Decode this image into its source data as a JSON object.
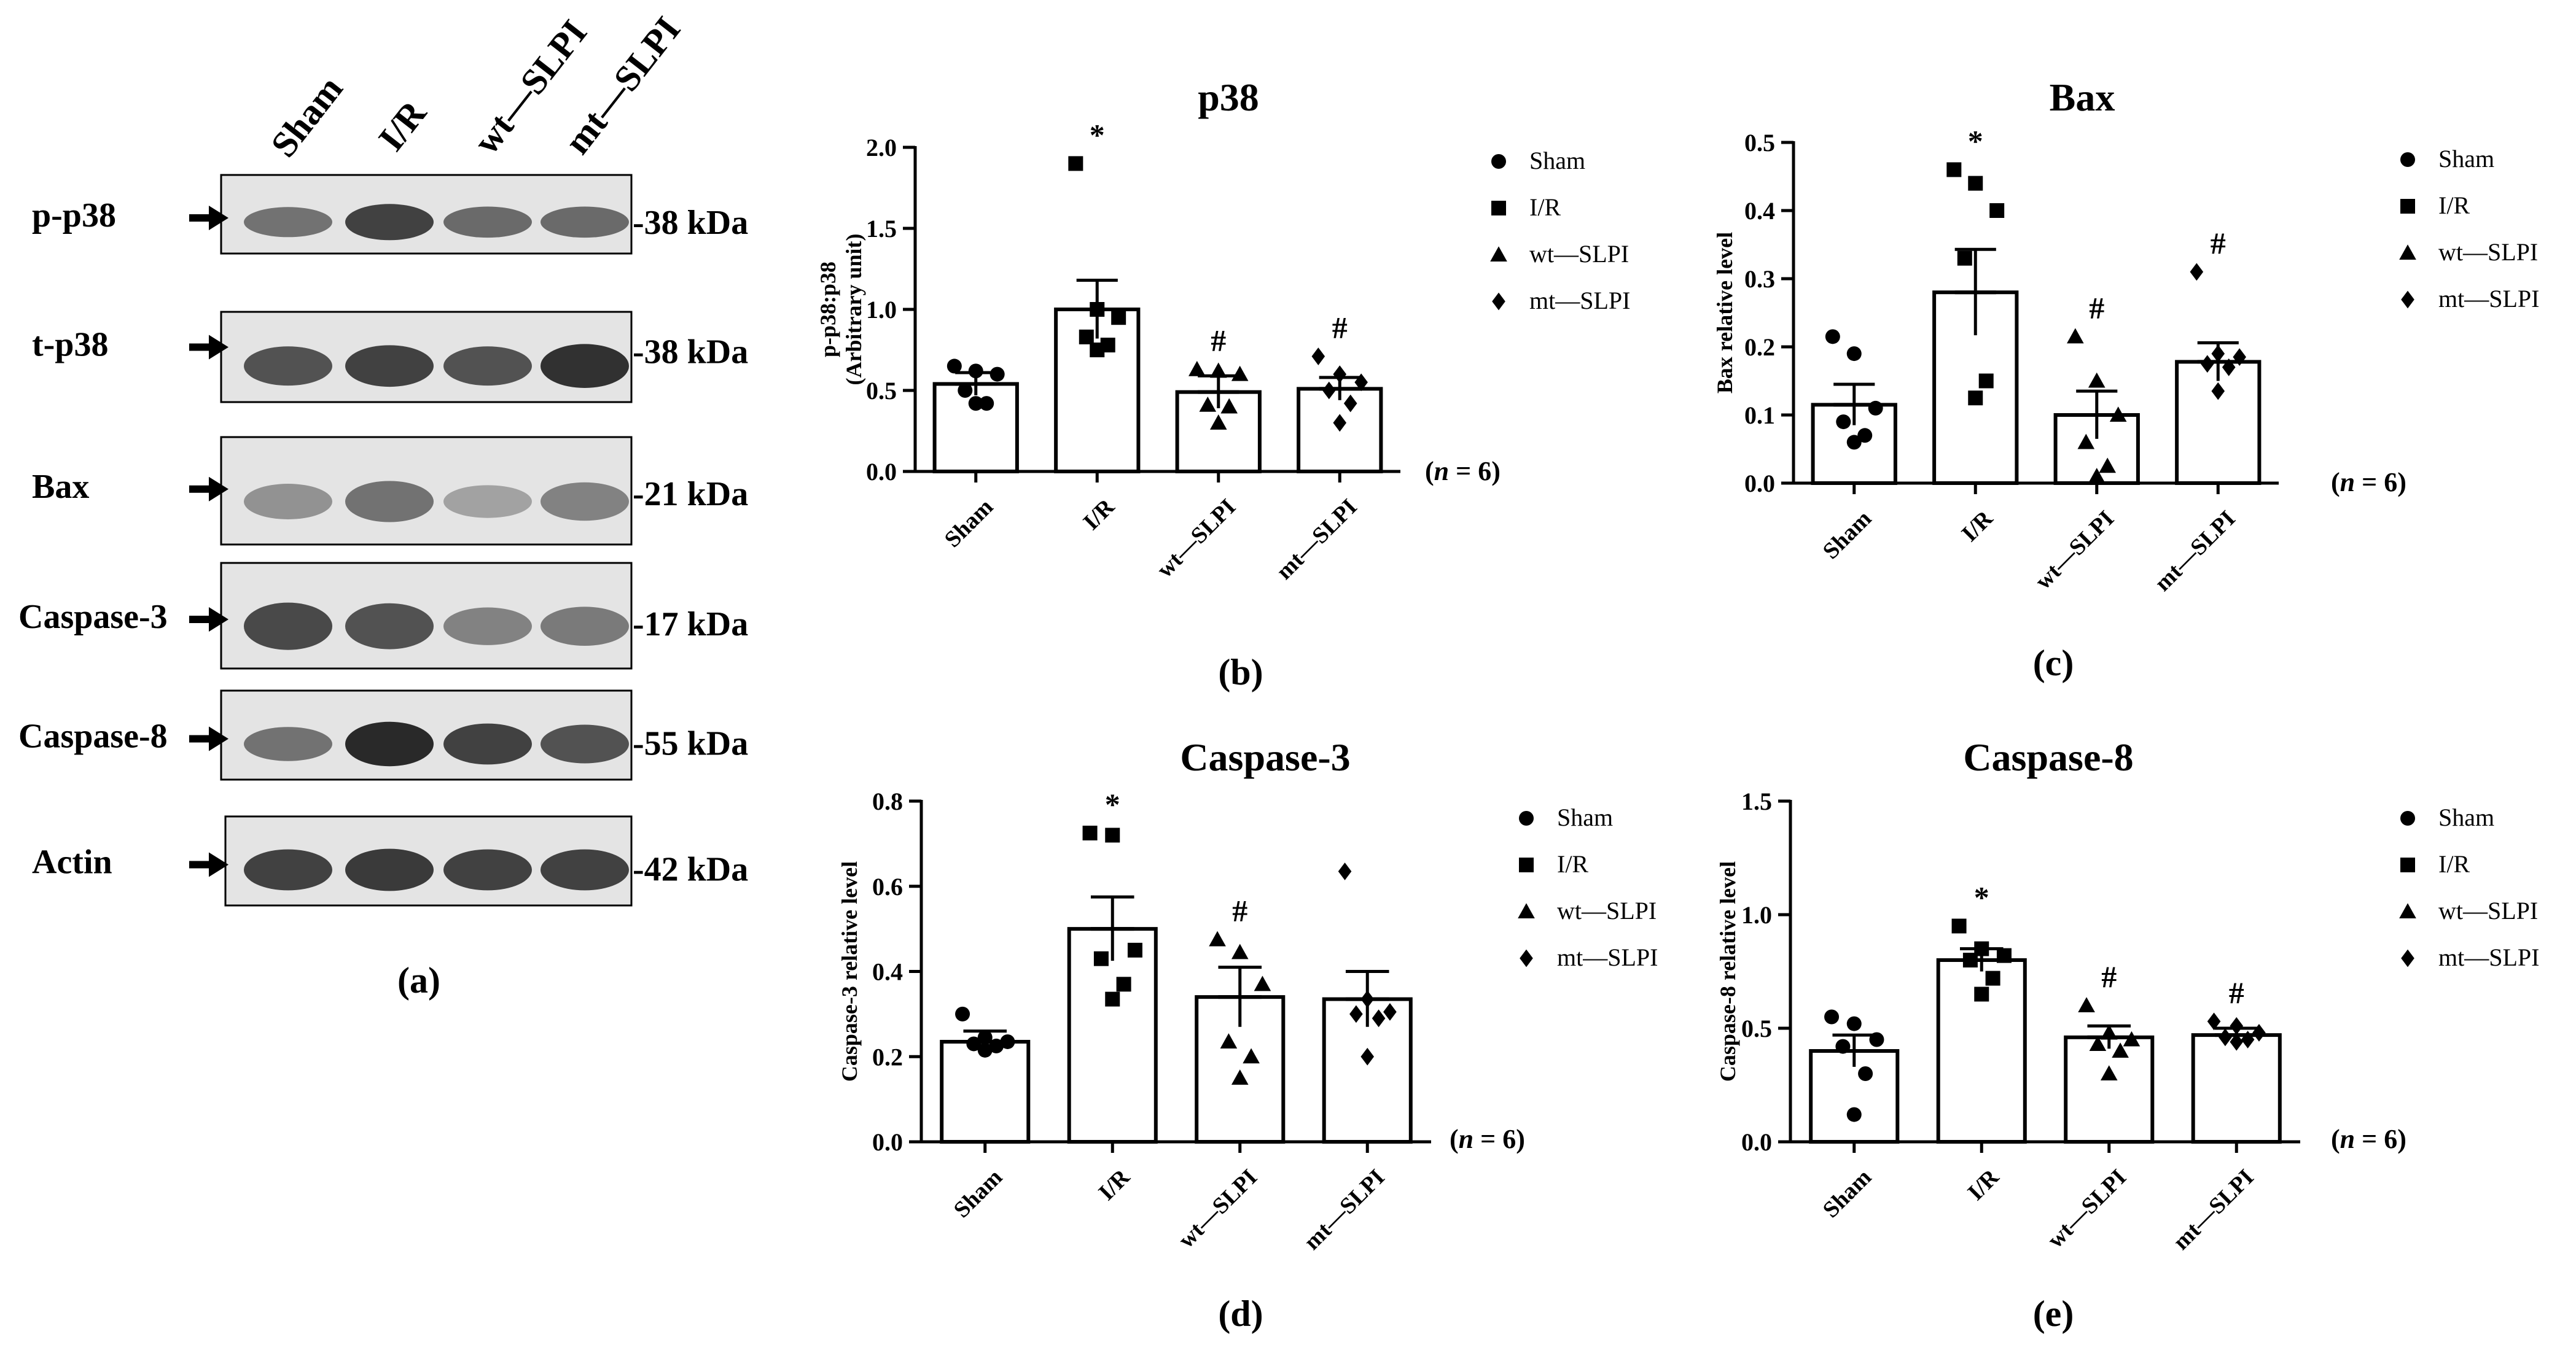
{
  "figure": {
    "panel_labels": [
      "(a)",
      "(b)",
      "(c)",
      "(d)",
      "(e)"
    ],
    "n_label": "= 6",
    "n_prefix": "(",
    "n_var": "n",
    "n_suffix": ")"
  },
  "blot": {
    "lane_labels": [
      "Sham",
      "I/R",
      "wt—SLPI",
      "mt—SLPI"
    ],
    "rows": [
      {
        "name": "p-p38",
        "kda": "-38 kDa"
      },
      {
        "name": "t-p38",
        "kda": "-38 kDa"
      },
      {
        "name": "Bax",
        "kda": "-21 kDa"
      },
      {
        "name": "Caspase-3",
        "kda": "-17 kDa"
      },
      {
        "name": "Caspase-8",
        "kda": "-55 kDa"
      },
      {
        "name": "Actin",
        "kda": "-42 kDa"
      }
    ],
    "band_intensity": [
      [
        0.55,
        0.85,
        0.6,
        0.6
      ],
      [
        0.75,
        0.85,
        0.75,
        0.95
      ],
      [
        0.35,
        0.55,
        0.25,
        0.45
      ],
      [
        0.8,
        0.75,
        0.45,
        0.5
      ],
      [
        0.55,
        1.0,
        0.85,
        0.75
      ],
      [
        0.85,
        0.9,
        0.85,
        0.85
      ]
    ]
  },
  "legend": [
    "Sham",
    "I/R",
    "wt—SLPI",
    "mt—SLPI"
  ],
  "chart_data": [
    {
      "type": "bar",
      "panel": "(b)",
      "title": "p38",
      "ylabel": [
        "p-p38:p38",
        "(Arbitrary unit)"
      ],
      "categories": [
        "Sham",
        "I/R",
        "wt—SLPI",
        "mt—SLPI"
      ],
      "values": [
        0.54,
        1.0,
        0.49,
        0.51
      ],
      "sem": [
        0.07,
        0.18,
        0.1,
        0.07
      ],
      "points": [
        [
          0.65,
          0.62,
          0.6,
          0.5,
          0.42,
          0.42
        ],
        [
          1.9,
          1.0,
          0.95,
          0.83,
          0.78,
          0.75
        ],
        [
          0.63,
          0.62,
          0.6,
          0.41,
          0.4,
          0.3
        ],
        [
          0.71,
          0.6,
          0.55,
          0.5,
          0.42,
          0.3
        ]
      ],
      "annotations": [
        "*",
        "#",
        "#"
      ],
      "annotation_categories": [
        "I/R",
        "wt—SLPI",
        "mt—SLPI"
      ],
      "ylim": [
        0,
        2.0
      ],
      "yticks": [
        "0.0",
        "0.5",
        "1.0",
        "1.5",
        "2.0"
      ]
    },
    {
      "type": "bar",
      "panel": "(c)",
      "title": "Bax",
      "ylabel": [
        "Bax relative level"
      ],
      "categories": [
        "Sham",
        "I/R",
        "wt—SLPI",
        "mt—SLPI"
      ],
      "values": [
        0.115,
        0.28,
        0.1,
        0.178
      ],
      "sem": [
        0.03,
        0.063,
        0.035,
        0.028
      ],
      "points": [
        [
          0.215,
          0.19,
          0.11,
          0.09,
          0.07,
          0.06
        ],
        [
          0.46,
          0.44,
          0.4,
          0.33,
          0.15,
          0.125
        ],
        [
          0.215,
          0.15,
          0.1,
          0.06,
          0.025,
          0.01
        ],
        [
          0.31,
          0.19,
          0.185,
          0.175,
          0.17,
          0.135
        ]
      ],
      "annotations": [
        "*",
        "#",
        "#"
      ],
      "annotation_categories": [
        "I/R",
        "wt—SLPI",
        "mt—SLPI"
      ],
      "ylim": [
        0,
        0.5
      ],
      "yticks": [
        "0.0",
        "0.1",
        "0.2",
        "0.3",
        "0.4",
        "0.5"
      ]
    },
    {
      "type": "bar",
      "panel": "(d)",
      "title": "Caspase-3",
      "ylabel": [
        "Caspase-3 relative level"
      ],
      "categories": [
        "Sham",
        "I/R",
        "wt—SLPI",
        "mt—SLPI"
      ],
      "values": [
        0.235,
        0.5,
        0.34,
        0.335
      ],
      "sem": [
        0.025,
        0.075,
        0.07,
        0.065
      ],
      "points": [
        [
          0.3,
          0.245,
          0.235,
          0.23,
          0.225,
          0.215
        ],
        [
          0.725,
          0.72,
          0.45,
          0.43,
          0.37,
          0.335
        ],
        [
          0.475,
          0.445,
          0.37,
          0.235,
          0.2,
          0.15
        ],
        [
          0.635,
          0.335,
          0.305,
          0.3,
          0.29,
          0.2
        ]
      ],
      "annotations": [
        "*",
        "#"
      ],
      "annotation_categories": [
        "I/R",
        "wt—SLPI"
      ],
      "ylim": [
        0,
        0.8
      ],
      "yticks": [
        "0.0",
        "0.2",
        "0.4",
        "0.6",
        "0.8"
      ]
    },
    {
      "type": "bar",
      "panel": "(e)",
      "title": "Caspase-8",
      "ylabel": [
        "Caspase-8 relative level"
      ],
      "categories": [
        "Sham",
        "I/R",
        "wt—SLPI",
        "mt—SLPI"
      ],
      "values": [
        0.4,
        0.8,
        0.46,
        0.47
      ],
      "sem": [
        0.07,
        0.05,
        0.05,
        0.03
      ],
      "points": [
        [
          0.55,
          0.52,
          0.45,
          0.42,
          0.3,
          0.12
        ],
        [
          0.95,
          0.85,
          0.82,
          0.8,
          0.72,
          0.65
        ],
        [
          0.6,
          0.48,
          0.45,
          0.43,
          0.4,
          0.3
        ],
        [
          0.53,
          0.51,
          0.48,
          0.46,
          0.45,
          0.44
        ]
      ],
      "annotations": [
        "*",
        "#",
        "#"
      ],
      "annotation_categories": [
        "I/R",
        "wt—SLPI",
        "mt—SLPI"
      ],
      "ylim": [
        0,
        1.5
      ],
      "yticks": [
        "0.0",
        "0.5",
        "1.0",
        "1.5"
      ]
    }
  ]
}
